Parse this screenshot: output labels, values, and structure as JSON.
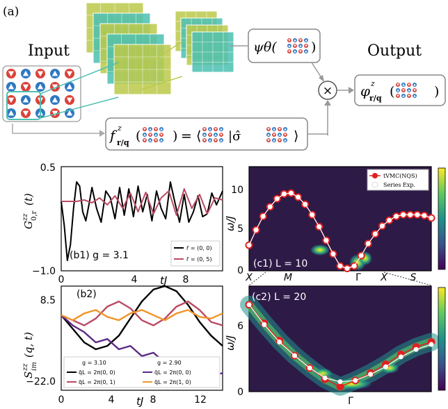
{
  "figure": {
    "panel_a": {
      "label": "(a)",
      "input_label": "Input",
      "output_label": "Output",
      "psi_text": "ψθ(",
      "phi_text": "φ",
      "phi_sub": "r/q",
      "phi_sup": "z",
      "f_text": "f",
      "f_sub": "r/q",
      "f_sup": "z",
      "eq_text": "= ⟨",
      "bra_ket_mid": "|σ̂",
      "bra_ket_end": "⟩",
      "multiply_symbol": "×",
      "colors": {
        "red": "#d9433a",
        "blue": "#2f78c2",
        "teal": "#4bbfb1",
        "olive": "#bcc94a",
        "green": "#5fae73"
      }
    },
    "panel_b1": {
      "tag": "(b1) g = 3.1",
      "ylabel": "G_{0,r}^{zz}(t)",
      "ylabel_plain": "G",
      "ylabel_sup": "zz",
      "ylabel_sub": "0,r",
      "ylabel_tail": "(t)",
      "xlabel": "tJ",
      "yticks": [
        "0.5",
        "−1.0"
      ],
      "xticks": [
        "0",
        "4",
        "8"
      ],
      "legend": [
        "r̄ = (0, 0)",
        "r̄ = (0, 5)"
      ]
    },
    "panel_b2": {
      "tag": "(b2)",
      "ylabel": "S_{im}^{zz}(q, t)",
      "ylabel_plain": "S",
      "ylabel_sup": "zz",
      "ylabel_sub": "im",
      "ylabel_tail": "(q, t)",
      "xlabel": "tJ",
      "yticks": [
        "8.5",
        "−22.0"
      ],
      "xticks": [
        "0",
        "4",
        "8",
        "12"
      ],
      "legend_g1": "g = 3.10",
      "legend_g2": "g = 2.90",
      "legend": [
        "q̄L = 2π(0, 0)",
        "q̄L = 2π(0, 1)",
        "q̄L = 2π(0, 0)",
        "q̄L = 2π(1, 0)"
      ]
    },
    "panel_c1": {
      "tag": "(c1) L = 10",
      "ylabel": "ω/J",
      "yticks": [
        "10",
        "5",
        "0"
      ],
      "xticks": [
        "X",
        "M",
        "Γ",
        "X",
        "S"
      ],
      "legend": [
        "tVMC(NQS)",
        "Series Exp."
      ]
    },
    "panel_c2": {
      "tag": "(c2) L = 20",
      "ylabel": "ω/J",
      "yticks": [
        "6",
        "0"
      ],
      "xticks": [
        "Γ"
      ]
    }
  },
  "chart_data": [
    {
      "type": "line",
      "title": "(b1) g = 3.1",
      "xlabel": "tJ",
      "ylabel": "G_{0,r}^{zz}(t)",
      "xlim": [
        0,
        10.5
      ],
      "ylim": [
        -1.0,
        0.5
      ],
      "series": [
        {
          "name": "r̄ = (0, 0)",
          "color": "#000000",
          "x": [
            0,
            0.2,
            0.4,
            0.6,
            0.8,
            1.0,
            1.2,
            1.4,
            1.6,
            1.8,
            2.0,
            2.3,
            2.6,
            2.9,
            3.2,
            3.5,
            3.8,
            4.1,
            4.4,
            4.7,
            5.0,
            5.3,
            5.6,
            5.9,
            6.2,
            6.5,
            6.8,
            7.1,
            7.4,
            7.7,
            8.0,
            8.3,
            8.6,
            8.9,
            9.2,
            9.5,
            9.8,
            10.1,
            10.5
          ],
          "values": [
            0,
            -0.35,
            -0.85,
            -0.62,
            -0.1,
            0.28,
            0.22,
            -0.15,
            -0.28,
            -0.05,
            0.2,
            -0.1,
            -0.3,
            0.15,
            0.05,
            -0.25,
            0.2,
            -0.2,
            0.18,
            -0.22,
            0.22,
            -0.15,
            0.1,
            -0.28,
            0.15,
            -0.1,
            -0.25,
            0.28,
            -0.02,
            -0.3,
            0.1,
            -0.3,
            -0.15,
            0.08,
            -0.22,
            -0.18,
            0.12,
            -0.05,
            0.15
          ]
        },
        {
          "name": "r̄ = (0, 5)",
          "color": "#b94a63",
          "x": [
            0,
            0.5,
            1.0,
            1.5,
            2.0,
            2.5,
            3.0,
            3.5,
            4.0,
            4.5,
            5.0,
            5.5,
            6.0,
            6.5,
            7.0,
            7.5,
            8.0,
            8.5,
            9.0,
            9.5,
            10.0,
            10.5
          ],
          "values": [
            0,
            0.0,
            0.0,
            0.02,
            -0.02,
            0.05,
            -0.05,
            0.08,
            -0.1,
            0.12,
            -0.15,
            0.13,
            -0.18,
            0.05,
            0.15,
            -0.2,
            0.18,
            -0.1,
            0.1,
            -0.18,
            0.05,
            0.02
          ]
        }
      ]
    },
    {
      "type": "line",
      "title": "(b2)",
      "xlabel": "tJ",
      "ylabel": "S_{im}^{zz}(q, t)",
      "xlim": [
        0,
        14
      ],
      "ylim": [
        -22.0,
        8.5
      ],
      "series": [
        {
          "name": "g = 3.10 q̄L = 2π(0, 0)",
          "color": "#000000",
          "x": [
            0,
            1,
            2,
            3,
            4,
            5,
            6,
            7,
            8,
            9,
            10,
            11,
            12,
            13,
            14
          ],
          "values": [
            0,
            -4,
            -8,
            -10,
            -9,
            -6,
            -1,
            4,
            7.5,
            8.5,
            7,
            3,
            -2,
            -6,
            -9
          ]
        },
        {
          "name": "g = 3.10 q̄L = 2π(0, 1)",
          "color": "#b94a63",
          "x": [
            0,
            1,
            2,
            3,
            4,
            5,
            6,
            7,
            8,
            9,
            10,
            11,
            12,
            13,
            14
          ],
          "values": [
            0,
            -1.5,
            -3,
            -1,
            2.5,
            4,
            2,
            -1.5,
            -3,
            -1,
            2.5,
            4,
            1.5,
            -2,
            -3
          ]
        },
        {
          "name": "g = 2.90 q̄L = 2π(0, 0)",
          "color": "#5b2a86",
          "x": [
            0,
            1,
            2,
            3,
            4,
            5,
            6,
            7,
            8,
            9,
            10,
            11,
            12,
            13,
            14
          ],
          "values": [
            0,
            -3,
            -5,
            -8,
            -7,
            -10,
            -9,
            -12,
            -11,
            -14,
            -15,
            -16,
            -17,
            -17.5,
            -17
          ]
        },
        {
          "name": "g = 2.90 q̄L = 2π(1, 0)",
          "color": "#f0952a",
          "x": [
            0,
            1,
            2,
            3,
            4,
            5,
            6,
            7,
            8,
            9,
            10,
            11,
            12,
            13,
            14
          ],
          "values": [
            0,
            -1.5,
            0.5,
            1.5,
            -0.5,
            -1.5,
            0.5,
            1.5,
            0,
            -1.5,
            0.5,
            1.5,
            -0.5,
            -1,
            0.5
          ]
        }
      ]
    },
    {
      "type": "line",
      "title": "(c1) L = 10",
      "ylabel": "ω/J",
      "ylim": [
        0,
        13
      ],
      "categories": [
        "X",
        "M",
        "Γ",
        "X",
        "S"
      ],
      "series": [
        {
          "name": "tVMC(NQS)",
          "color": "#e02020",
          "x": [
            0,
            1,
            2,
            3,
            4,
            5,
            6,
            7,
            8,
            9,
            10,
            11,
            12,
            13,
            14,
            15,
            16,
            17,
            18,
            19,
            20,
            21,
            22,
            23,
            24,
            25,
            26
          ],
          "values": [
            3.2,
            5.1,
            6.8,
            8.0,
            9.0,
            9.6,
            9.7,
            9.2,
            8.3,
            7.0,
            5.5,
            3.8,
            2.1,
            0.6,
            0.3,
            0.6,
            1.9,
            3.4,
            4.6,
            5.6,
            6.3,
            6.8,
            7.0,
            7.0,
            7.0,
            6.9,
            6.6
          ]
        },
        {
          "name": "Series Exp.",
          "color": "#ffffff",
          "x": [
            0,
            1,
            2,
            3,
            4,
            5,
            6,
            7,
            8,
            9,
            10,
            11,
            12,
            13,
            14,
            15,
            16,
            17,
            18,
            19,
            20,
            21,
            22,
            23,
            24,
            25,
            26
          ],
          "values": [
            3.2,
            5.1,
            6.8,
            8.0,
            9.0,
            9.6,
            9.7,
            9.2,
            8.3,
            7.0,
            5.5,
            3.8,
            2.1,
            0.6,
            0.3,
            0.6,
            1.9,
            3.4,
            4.6,
            5.6,
            6.3,
            6.8,
            7.0,
            7.0,
            7.0,
            6.9,
            6.6
          ]
        }
      ]
    },
    {
      "type": "line",
      "title": "(c2) L = 20",
      "ylabel": "ω/J",
      "ylim": [
        0,
        8.5
      ],
      "categories": [
        "Γ"
      ],
      "series": [
        {
          "name": "tVMC(NQS)",
          "color": "#e02020",
          "x": [
            0,
            1,
            2,
            3,
            4,
            5,
            6,
            7,
            8,
            9,
            10,
            11,
            12
          ],
          "values": [
            7.0,
            5.5,
            4.1,
            2.9,
            1.9,
            1.0,
            0.4,
            0.9,
            1.5,
            2.2,
            3.0,
            3.6,
            4.0
          ]
        },
        {
          "name": "Series Exp.",
          "color": "#ffffff",
          "x": [
            0,
            1,
            2,
            3,
            4,
            5,
            6,
            7,
            8,
            9,
            10,
            11,
            12
          ],
          "values": [
            7.0,
            5.4,
            4.0,
            2.9,
            1.9,
            1.1,
            0.8,
            0.9,
            1.4,
            2.0,
            2.8,
            3.4,
            3.8
          ]
        }
      ]
    }
  ]
}
